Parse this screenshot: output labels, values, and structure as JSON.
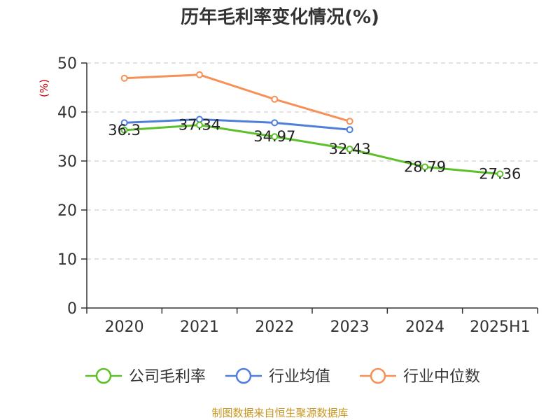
{
  "chart_data": {
    "type": "line",
    "title": "历年毛利率变化情况(%)",
    "y_unit": "(%)",
    "categories": [
      "2020",
      "2021",
      "2022",
      "2023",
      "2024",
      "2025H1"
    ],
    "ylim": [
      0,
      50
    ],
    "yticks": [
      "0",
      "10",
      "20",
      "30",
      "40",
      "50"
    ],
    "grid": true,
    "legend_position": "bottom",
    "series": [
      {
        "name": "公司毛利率",
        "color": "#5cc02a",
        "values": [
          36.3,
          37.34,
          34.97,
          32.43,
          28.79,
          27.36
        ],
        "labels": [
          "36.3",
          "37.34",
          "34.97",
          "32.43",
          "28.79",
          "27.36"
        ]
      },
      {
        "name": "行业均值",
        "color": "#4f7fd9",
        "values": [
          37.8,
          38.5,
          37.8,
          36.4,
          null,
          null
        ]
      },
      {
        "name": "行业中位数",
        "color": "#f59156",
        "values": [
          46.9,
          47.6,
          42.6,
          38.1,
          null,
          null
        ]
      }
    ]
  },
  "source": "制图数据来自恒生聚源数据库"
}
